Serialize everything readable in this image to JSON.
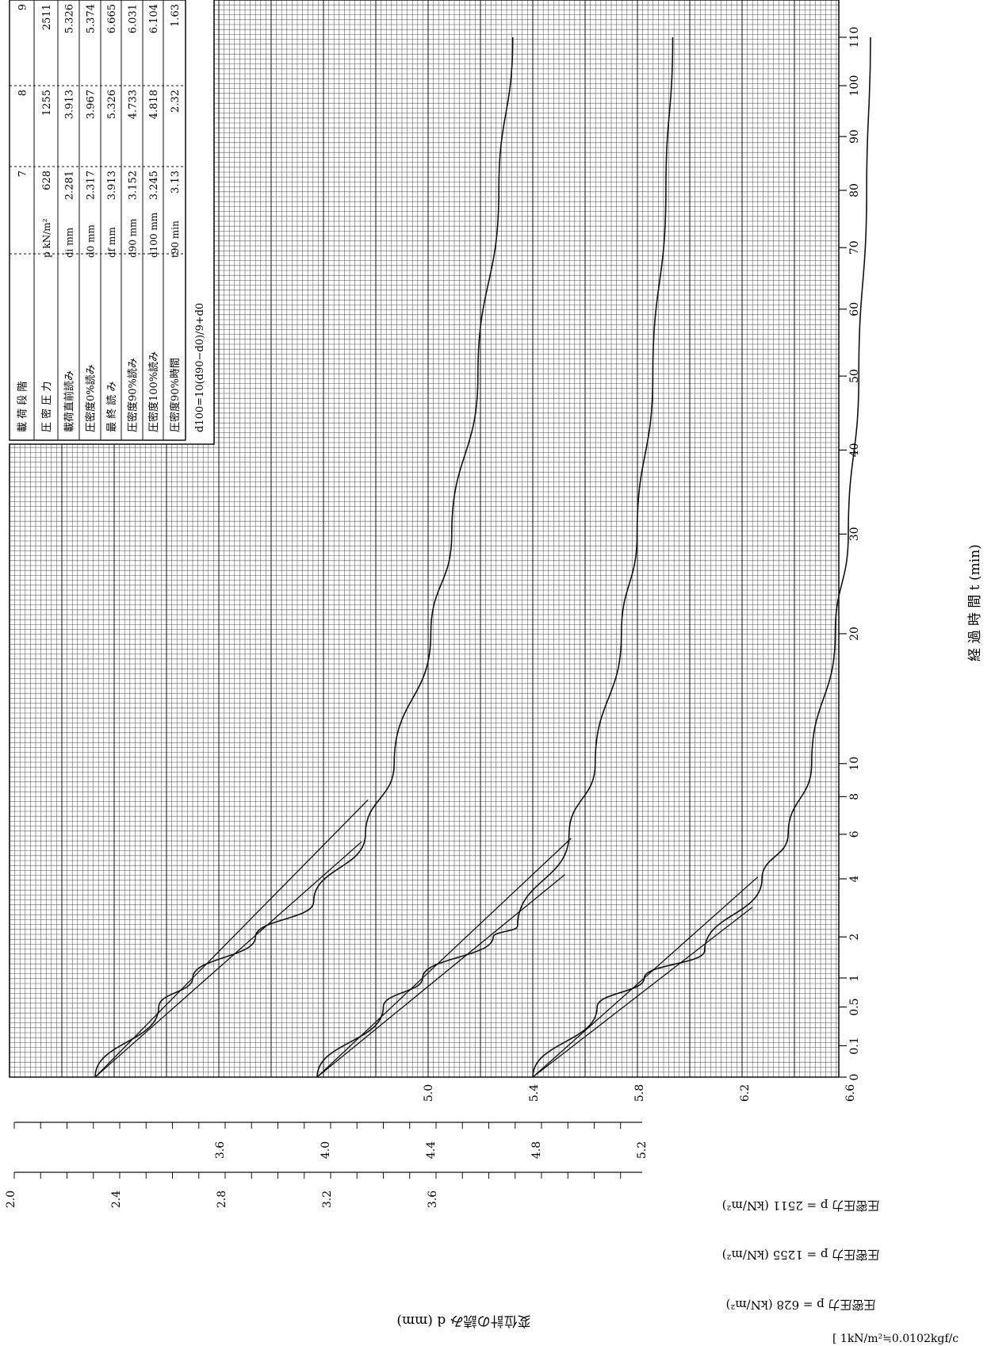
{
  "table": {
    "rows": [
      {
        "label": "載 荷 段 階",
        "unit": "",
        "values": [
          "7",
          "8",
          "9"
        ]
      },
      {
        "label": "圧 密 圧 力",
        "unit": "p kN/m²",
        "values": [
          "628",
          "1255",
          "2511"
        ]
      },
      {
        "label": "載荷直前読み",
        "unit": "di mm",
        "values": [
          "2.281",
          "3.913",
          "5.326"
        ]
      },
      {
        "label": "圧密度0%読み",
        "unit": "d0 mm",
        "values": [
          "2.317",
          "3.967",
          "5.374"
        ]
      },
      {
        "label": "最 終 読 み",
        "unit": "df mm",
        "values": [
          "3.913",
          "5.326",
          "6.665"
        ]
      },
      {
        "label": "圧密度90%読み",
        "unit": "d90 mm",
        "values": [
          "3.152",
          "4.733",
          "6.031"
        ]
      },
      {
        "label": "圧密度100%読み",
        "unit": "d100 mm",
        "values": [
          "3.245",
          "4.818",
          "6.104"
        ]
      },
      {
        "label": "圧密度90%時間",
        "unit": "t90 min",
        "values": [
          "3.13",
          "2.32",
          "1.63"
        ]
      }
    ],
    "formula": "d100=10(d90−d0)/9+d0"
  },
  "axes": {
    "time_label": "経 過 時 間 t (min)",
    "time_ticks": [
      "0",
      "0.1",
      "0.5",
      "1",
      "2",
      "4",
      "6",
      "8",
      "10",
      "20",
      "30",
      "40",
      "50",
      "60",
      "70",
      "80",
      "90",
      "100",
      "110"
    ],
    "scale1_label": "圧密圧力 p = 2511 (kN/m²)",
    "scale1_ticks": [
      "5.0",
      "5.4",
      "5.8",
      "6.2",
      "6.6"
    ],
    "scale2_label": "圧密圧力 p = 1255 (kN/m²)",
    "scale2_ticks": [
      "3.6",
      "4.0",
      "4.4",
      "4.8",
      "5.2"
    ],
    "scale3_label": "圧密圧力 p = 628 (kN/m²)",
    "scale3_ticks": [
      "2.0",
      "2.4",
      "2.8",
      "3.2",
      "3.6"
    ],
    "displacement_label": "変位計の読み d (mm)",
    "footer_note": "[ 1kN/m²≒0.0102kgf/c"
  },
  "chart_data": {
    "type": "line",
    "x_scale": "sqrt",
    "xlabel": "経過時間 t (min)",
    "ylabel": "変位計の読み d (mm)",
    "xlim": [
      0,
      110
    ],
    "series": [
      {
        "name": "p = 628 kN/m²",
        "d0": 2.317,
        "d90": 3.152,
        "d100": 3.245,
        "df": 3.913,
        "t90": 3.13,
        "x": [
          0,
          0.5,
          1,
          2,
          3.13,
          6,
          10,
          20,
          30,
          50,
          80,
          110
        ],
        "y": [
          2.317,
          2.56,
          2.69,
          2.93,
          3.152,
          3.35,
          3.46,
          3.6,
          3.68,
          3.78,
          3.86,
          3.913
        ]
      },
      {
        "name": "p = 1255 kN/m²",
        "d0": 3.967,
        "d90": 4.733,
        "d100": 4.818,
        "df": 5.326,
        "t90": 2.32,
        "x": [
          0,
          0.5,
          1,
          2,
          2.32,
          6,
          10,
          20,
          30,
          50,
          80,
          110
        ],
        "y": [
          3.967,
          4.22,
          4.37,
          4.64,
          4.733,
          4.93,
          5.03,
          5.13,
          5.19,
          5.25,
          5.3,
          5.326
        ]
      },
      {
        "name": "p = 2511 kN/m²",
        "d0": 5.374,
        "d90": 6.031,
        "d100": 6.104,
        "df": 6.665,
        "t90": 1.63,
        "x": [
          0,
          0.5,
          1,
          1.63,
          4,
          6,
          10,
          20,
          30,
          50,
          80,
          110
        ],
        "y": [
          5.374,
          5.62,
          5.8,
          6.031,
          6.25,
          6.35,
          6.44,
          6.53,
          6.58,
          6.62,
          6.65,
          6.665
        ]
      }
    ]
  }
}
